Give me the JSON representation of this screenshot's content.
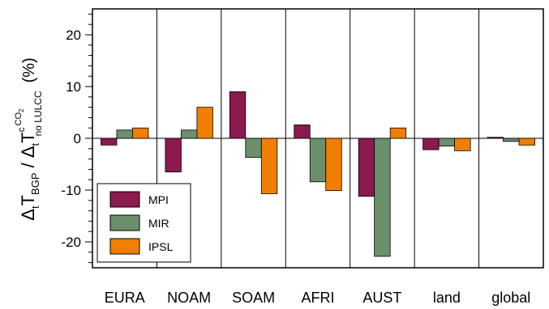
{
  "chart_data": {
    "type": "bar",
    "categories": [
      "EURA",
      "NOAM",
      "SOAM",
      "AFRI",
      "AUST",
      "land",
      "global"
    ],
    "series": [
      {
        "name": "MPI",
        "color": "#8B1A4E",
        "values": [
          -1.3,
          -6.5,
          9.0,
          2.6,
          -11.2,
          -2.2,
          0.2
        ]
      },
      {
        "name": "MIR",
        "color": "#6B8F6B",
        "values": [
          1.6,
          1.6,
          -3.7,
          -8.4,
          -22.8,
          -1.5,
          -0.6
        ]
      },
      {
        "name": "IPSL",
        "color": "#F07F00",
        "values": [
          2.0,
          6.0,
          -10.7,
          -10.1,
          2.0,
          -2.4,
          -1.3
        ]
      }
    ],
    "ylim": [
      -25,
      25
    ],
    "yticks": [
      -20,
      -10,
      0,
      10,
      20
    ],
    "ytick_labels": [
      "-20",
      "-10",
      "0",
      "10",
      "20"
    ],
    "minor_ytick_step": 2,
    "ylabel": {
      "delta_t_left": "Δ",
      "t_sub_left": "t",
      "T_left": "T",
      "bgp_sub": "BGP",
      "slash": " / ",
      "delta_t_right": "Δ",
      "t_sub_right": "t",
      "T_right": "T",
      "c_sup": "c",
      "co2_sup": "CO",
      "co2_sub": "2",
      "nolulcc_sub": "no LULCC",
      "unit": "(%)"
    },
    "legend_position": "bottom-left",
    "grid": false
  }
}
